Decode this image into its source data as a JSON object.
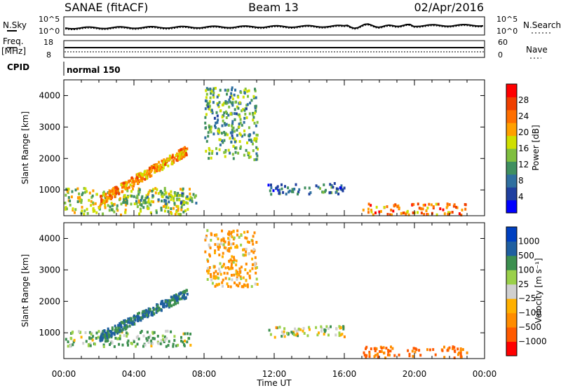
{
  "header": {
    "station": "SANAE (fitACF)",
    "beam": "Beam 13",
    "date": "02/Apr/2016"
  },
  "top_panels": {
    "nsky_label": "N.Sky",
    "nsky_ticks": [
      "10^5",
      "10^0"
    ],
    "nsearch_label": "N.Search",
    "nsearch_ticks": [
      "10^5",
      "10^0"
    ],
    "freq_label": "Freq.",
    "freq_unit": "[MHz]",
    "freq_ticks": [
      "18",
      "8"
    ],
    "nave_label": "Nave",
    "nave_ticks": [
      "60",
      "0"
    ],
    "cpid_label": "CPID",
    "cpid_value": "normal 150"
  },
  "colors": {
    "power_scale": [
      "#0000ff",
      "#1f3f9f",
      "#2f6f9f",
      "#3f8f5f",
      "#7fbf3f",
      "#cfdf00",
      "#ffa000",
      "#ff6f00",
      "#ef3f00",
      "#ff0000"
    ],
    "velocity_scale": [
      "#ff0000",
      "#ff5a00",
      "#ff8c00",
      "#ffb000",
      "#d0d0d0",
      "#9ad04a",
      "#3c8f4f",
      "#1f5fa0",
      "#0040c0"
    ]
  },
  "chart_data": [
    {
      "type": "heatmap",
      "title": "",
      "xlabel": "Time UT",
      "ylabel": "Slant Range [km]",
      "x_ticks": [
        "00:00",
        "04:00",
        "08:00",
        "12:00",
        "16:00",
        "20:00",
        "00:00"
      ],
      "y_ticks": [
        "1000",
        "2000",
        "3000",
        "4000"
      ],
      "ylim": [
        180,
        4500
      ],
      "colorbar_label": "Power [dB]",
      "colorbar_ticks": [
        "4",
        "8",
        "12",
        "16",
        "20",
        "24",
        "28"
      ],
      "colorbar_range": [
        0,
        32
      ],
      "regions": [
        {
          "t0": 0.0,
          "t1": 7.2,
          "r0": 200,
          "r1": 1100,
          "value": 16,
          "desc": "near range band"
        },
        {
          "t0": 2.0,
          "t1": 7.0,
          "r0": 700,
          "r1": 2300,
          "value": 22,
          "desc": "rising arc"
        },
        {
          "t0": 3.5,
          "t1": 7.5,
          "r0": 600,
          "r1": 950,
          "value": 12,
          "desc": "low band"
        },
        {
          "t0": 8.0,
          "t1": 11.0,
          "r0": 2000,
          "r1": 4300,
          "value": 12,
          "desc": "high range scatter"
        },
        {
          "t0": 11.5,
          "t1": 16.0,
          "r0": 900,
          "r1": 1250,
          "value": 8,
          "desc": "mid band"
        },
        {
          "t0": 17.0,
          "t1": 23.0,
          "r0": 200,
          "r1": 600,
          "value": 24,
          "desc": "evening echoes"
        }
      ]
    },
    {
      "type": "heatmap",
      "title": "",
      "xlabel": "Time UT",
      "ylabel": "Slant Range [km]",
      "x_ticks": [
        "00:00",
        "04:00",
        "08:00",
        "12:00",
        "16:00",
        "20:00",
        "00:00"
      ],
      "y_ticks": [
        "1000",
        "2000",
        "3000",
        "4000"
      ],
      "ylim": [
        180,
        4500
      ],
      "colorbar_label": "Velocity [m s⁻¹]",
      "colorbar_ticks": [
        "1000",
        "500",
        "100",
        "25",
        "−25",
        "−100",
        "−500",
        "−1000"
      ],
      "regions": [
        {
          "t0": 0.0,
          "t1": 7.2,
          "r0": 600,
          "r1": 1100,
          "value": 100,
          "desc": "near range band"
        },
        {
          "t0": 2.0,
          "t1": 7.0,
          "r0": 900,
          "r1": 2300,
          "value": 500,
          "desc": "rising arc"
        },
        {
          "t0": 8.0,
          "t1": 11.0,
          "r0": 2500,
          "r1": 4300,
          "value": -100,
          "desc": "high range scatter"
        },
        {
          "t0": 11.5,
          "t1": 16.0,
          "r0": 900,
          "r1": 1250,
          "value": 25,
          "desc": "mid band"
        },
        {
          "t0": 17.0,
          "t1": 23.0,
          "r0": 200,
          "r1": 600,
          "value": -500,
          "desc": "evening echoes"
        }
      ]
    }
  ]
}
